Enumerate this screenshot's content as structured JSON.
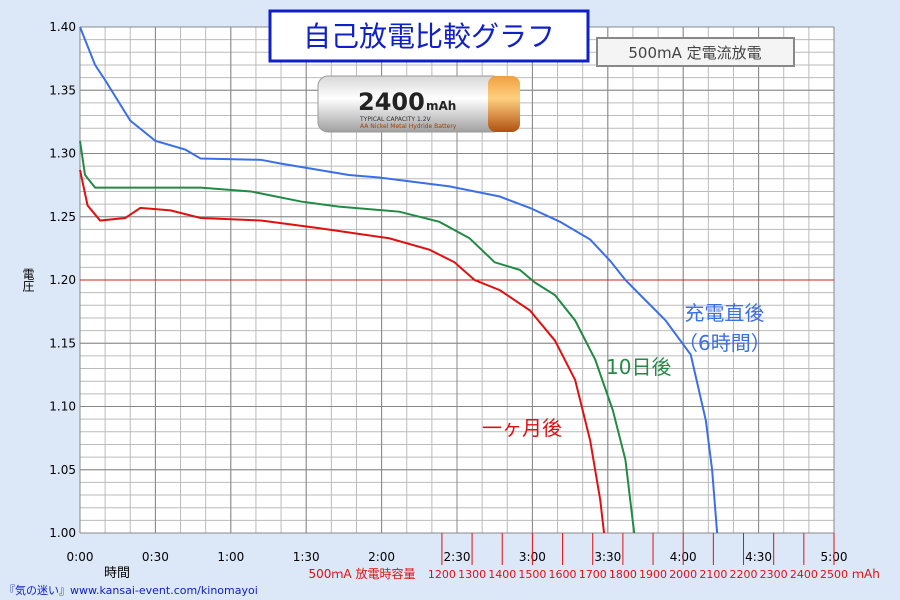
{
  "chart_data": {
    "type": "line",
    "title": "自己放電比較グラフ",
    "subtitle": "500mA 定電流放電",
    "battery": {
      "capacity": "2400",
      "unit": "mAh",
      "spec": "TYPICAL CAPACITY  1.2V",
      "chem": "AA Nickel Metal Hydride Battery"
    },
    "y_label": "電圧",
    "x_label": "時間",
    "footer": "『気の迷い』www.kansai-event.com/kinomayoi",
    "xlim": [
      0,
      300
    ],
    "ylim": [
      1.0,
      1.4
    ],
    "xticks": [
      {
        "value": 0,
        "label": "0:00"
      },
      {
        "value": 30,
        "label": "0:30"
      },
      {
        "value": 60,
        "label": "1:00"
      },
      {
        "value": 90,
        "label": "1:30"
      },
      {
        "value": 120,
        "label": "2:00"
      },
      {
        "value": 150,
        "label": "2:30"
      },
      {
        "value": 180,
        "label": "3:00"
      },
      {
        "value": 210,
        "label": "3:30"
      },
      {
        "value": 240,
        "label": "4:00"
      },
      {
        "value": 270,
        "label": "4:30"
      },
      {
        "value": 300,
        "label": "5:00"
      }
    ],
    "yticks": [
      {
        "value": 1.0,
        "label": "1.00"
      },
      {
        "value": 1.05,
        "label": "1.05"
      },
      {
        "value": 1.1,
        "label": "1.10"
      },
      {
        "value": 1.15,
        "label": "1.15"
      },
      {
        "value": 1.2,
        "label": "1.20"
      },
      {
        "value": 1.25,
        "label": "1.25"
      },
      {
        "value": 1.3,
        "label": "1.30"
      },
      {
        "value": 1.35,
        "label": "1.35"
      },
      {
        "value": 1.4,
        "label": "1.40"
      }
    ],
    "xgrid": [
      10,
      20,
      30,
      40,
      50,
      60,
      70,
      80,
      90,
      100,
      110,
      120,
      130,
      140,
      150,
      160,
      170,
      180,
      190,
      200,
      210,
      220,
      230,
      240,
      250,
      260,
      270,
      280,
      290
    ],
    "ygrid": [
      1.01,
      1.02,
      1.03,
      1.04,
      1.05,
      1.06,
      1.07,
      1.08,
      1.09,
      1.1,
      1.11,
      1.12,
      1.13,
      1.14,
      1.15,
      1.16,
      1.17,
      1.18,
      1.19,
      1.21,
      1.22,
      1.23,
      1.24,
      1.25,
      1.26,
      1.27,
      1.28,
      1.29,
      1.3,
      1.31,
      1.32,
      1.33,
      1.34,
      1.35,
      1.36,
      1.37,
      1.38,
      1.39
    ],
    "reference_line": 1.2,
    "x2_label": "500ｍA 放電時容量",
    "x2_unit": "ｍAh",
    "x2lim": [
      0,
      2500
    ],
    "x2ticks": [
      1200,
      1300,
      1400,
      1500,
      1600,
      1700,
      1800,
      1900,
      2000,
      2100,
      2200,
      2300,
      2400,
      2500
    ],
    "series": [
      {
        "name": "充電直後\n（6時間）",
        "color": "#3a6fe8",
        "x": [
          0,
          6,
          10,
          20,
          30,
          42,
          48,
          72,
          80,
          107,
          119,
          147,
          167,
          179,
          191,
          203,
          211,
          217,
          225,
          233,
          243,
          249,
          251.5,
          253.5
        ],
        "values": [
          1.4,
          1.37,
          1.358,
          1.326,
          1.31,
          1.303,
          1.296,
          1.295,
          1.292,
          1.283,
          1.281,
          1.274,
          1.266,
          1.257,
          1.246,
          1.232,
          1.215,
          1.2,
          1.184,
          1.168,
          1.141,
          1.089,
          1.05,
          1.0
        ]
      },
      {
        "name": "10日後",
        "color": "#228a44",
        "x": [
          0,
          2,
          6,
          48,
          68,
          88,
          103,
          127,
          143,
          155,
          165,
          175,
          181,
          189,
          197,
          205,
          212,
          217,
          220.5
        ],
        "values": [
          1.31,
          1.283,
          1.273,
          1.273,
          1.27,
          1.262,
          1.258,
          1.254,
          1.246,
          1.233,
          1.214,
          1.208,
          1.198,
          1.188,
          1.168,
          1.137,
          1.097,
          1.058,
          1.0
        ]
      },
      {
        "name": "一ヶ月後",
        "color": "#e01010",
        "x": [
          0,
          3,
          8,
          18,
          24,
          36,
          48,
          72,
          95,
          123,
          139,
          149,
          157,
          167,
          179,
          189,
          197,
          203,
          207,
          208.5
        ],
        "values": [
          1.287,
          1.259,
          1.247,
          1.249,
          1.257,
          1.255,
          1.249,
          1.247,
          1.241,
          1.233,
          1.224,
          1.214,
          1.2,
          1.192,
          1.176,
          1.152,
          1.121,
          1.073,
          1.026,
          1.0
        ]
      }
    ]
  }
}
